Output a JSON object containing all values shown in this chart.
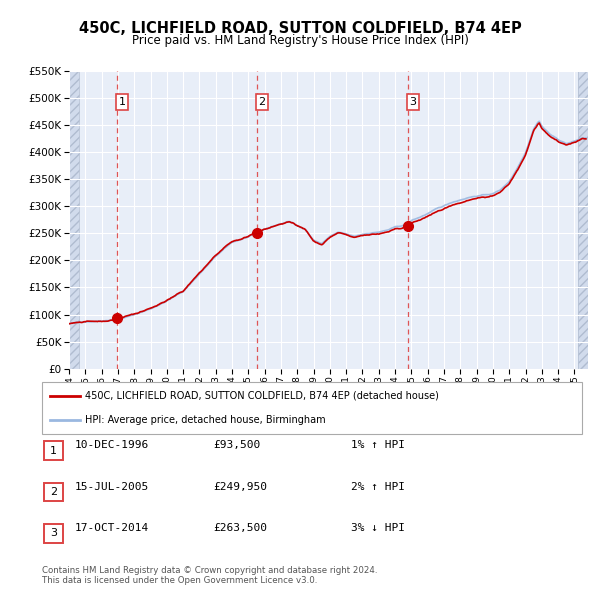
{
  "title": "450C, LICHFIELD ROAD, SUTTON COLDFIELD, B74 4EP",
  "subtitle": "Price paid vs. HM Land Registry's House Price Index (HPI)",
  "background_color": "#ffffff",
  "chart_bg_color": "#e8eef8",
  "hatch_color": "#c8d4e8",
  "grid_color": "#ffffff",
  "ylim": [
    0,
    550000
  ],
  "yticks": [
    0,
    50000,
    100000,
    150000,
    200000,
    250000,
    300000,
    350000,
    400000,
    450000,
    500000,
    550000
  ],
  "xlim_start": 1994.0,
  "xlim_end": 2025.83,
  "hpi_color": "#9ab8e0",
  "price_color": "#cc0000",
  "sale_marker_color": "#cc0000",
  "sale_marker_size": 7,
  "dashed_line_color": "#dd4444",
  "sale_points": [
    {
      "label": 1,
      "year": 1996.95,
      "price": 93500
    },
    {
      "label": 2,
      "year": 2005.54,
      "price": 249950
    },
    {
      "label": 3,
      "year": 2014.79,
      "price": 263500
    }
  ],
  "legend_entries": [
    "450C, LICHFIELD ROAD, SUTTON COLDFIELD, B74 4EP (detached house)",
    "HPI: Average price, detached house, Birmingham"
  ],
  "table_rows": [
    [
      "1",
      "10-DEC-1996",
      "£93,500",
      "1% ↑ HPI"
    ],
    [
      "2",
      "15-JUL-2005",
      "£249,950",
      "2% ↑ HPI"
    ],
    [
      "3",
      "17-OCT-2014",
      "£263,500",
      "3% ↓ HPI"
    ]
  ],
  "footer_text": "Contains HM Land Registry data © Crown copyright and database right 2024.\nThis data is licensed under the Open Government Licence v3.0.",
  "xtick_years": [
    1994,
    1995,
    1996,
    1997,
    1998,
    1999,
    2000,
    2001,
    2002,
    2003,
    2004,
    2005,
    2006,
    2007,
    2008,
    2009,
    2010,
    2011,
    2012,
    2013,
    2014,
    2015,
    2016,
    2017,
    2018,
    2019,
    2020,
    2021,
    2022,
    2023,
    2024,
    2025
  ]
}
